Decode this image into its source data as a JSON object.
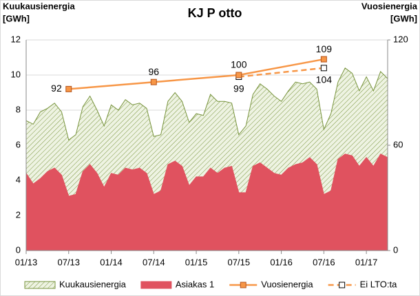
{
  "chart_data": {
    "type": "area-line",
    "title": "KJ P otto",
    "y_label": [
      "Kuukausienergia",
      "[GWh]"
    ],
    "y2_label": [
      "Vuosienergia",
      "[GWh]"
    ],
    "categories": [
      "01/13",
      null,
      null,
      null,
      null,
      null,
      "07/13",
      null,
      null,
      null,
      null,
      null,
      "01/14",
      null,
      null,
      null,
      null,
      null,
      "07/14",
      null,
      null,
      null,
      null,
      null,
      "01/15",
      null,
      null,
      null,
      null,
      null,
      "07/15",
      null,
      null,
      null,
      null,
      null,
      "01/16",
      null,
      null,
      null,
      null,
      null,
      "07/16",
      null,
      null,
      null,
      null,
      null,
      "01/17",
      null,
      null,
      null
    ],
    "series": [
      {
        "name": "Kuukausienergia",
        "kind": "area",
        "color": "#77933c",
        "fill": "#eef3e2",
        "values": [
          7.4,
          7.2,
          7.9,
          8.1,
          8.4,
          7.9,
          6.3,
          6.6,
          8.2,
          8.8,
          8.0,
          7.1,
          8.3,
          8.0,
          8.6,
          8.3,
          8.4,
          8.1,
          6.5,
          6.6,
          8.5,
          9.0,
          8.5,
          7.3,
          7.8,
          7.7,
          8.9,
          8.5,
          8.5,
          8.4,
          6.6,
          7.1,
          8.9,
          9.5,
          9.2,
          8.8,
          8.5,
          9.1,
          9.6,
          9.5,
          9.6,
          9.2,
          6.9,
          7.8,
          9.6,
          10.4,
          10.1,
          9.1,
          9.9,
          9.1,
          10.2,
          9.8
        ]
      },
      {
        "name": "Asiakas 1",
        "kind": "area",
        "color": "#e0525f",
        "fill": "#e0525f",
        "values": [
          4.4,
          3.8,
          4.1,
          4.5,
          4.7,
          4.3,
          3.1,
          3.2,
          4.5,
          4.9,
          4.4,
          3.6,
          4.4,
          4.3,
          4.7,
          4.6,
          4.7,
          4.4,
          3.2,
          3.4,
          4.9,
          5.1,
          4.8,
          3.7,
          4.2,
          4.2,
          4.7,
          4.4,
          4.7,
          4.8,
          3.3,
          3.3,
          4.8,
          5.0,
          4.7,
          4.4,
          4.3,
          4.7,
          4.9,
          5.0,
          5.3,
          4.9,
          3.2,
          3.4,
          5.2,
          5.5,
          5.4,
          4.8,
          5.3,
          4.8,
          5.5,
          5.3
        ]
      },
      {
        "name": "Vuosienergia",
        "kind": "line",
        "axis": "y2",
        "color": "#f79646",
        "marker_fill": "#f79646",
        "dashed": false,
        "x": [
          "07/13",
          "07/14",
          "07/15",
          "07/16"
        ],
        "values": [
          92,
          96,
          100,
          109
        ]
      },
      {
        "name": "Ei LTO:ta",
        "kind": "line",
        "axis": "y2",
        "color": "#f79646",
        "marker_fill": "#ffffff",
        "dashed": true,
        "x": [
          "07/15",
          "07/16"
        ],
        "values": [
          99,
          104
        ]
      }
    ],
    "ylim": [
      0,
      12
    ],
    "yticks": [
      0,
      2,
      4,
      6,
      8,
      10,
      12
    ],
    "y2lim": [
      0,
      120
    ],
    "y2ticks": [
      0,
      60,
      120
    ],
    "grid": true,
    "legend": "bottom"
  }
}
